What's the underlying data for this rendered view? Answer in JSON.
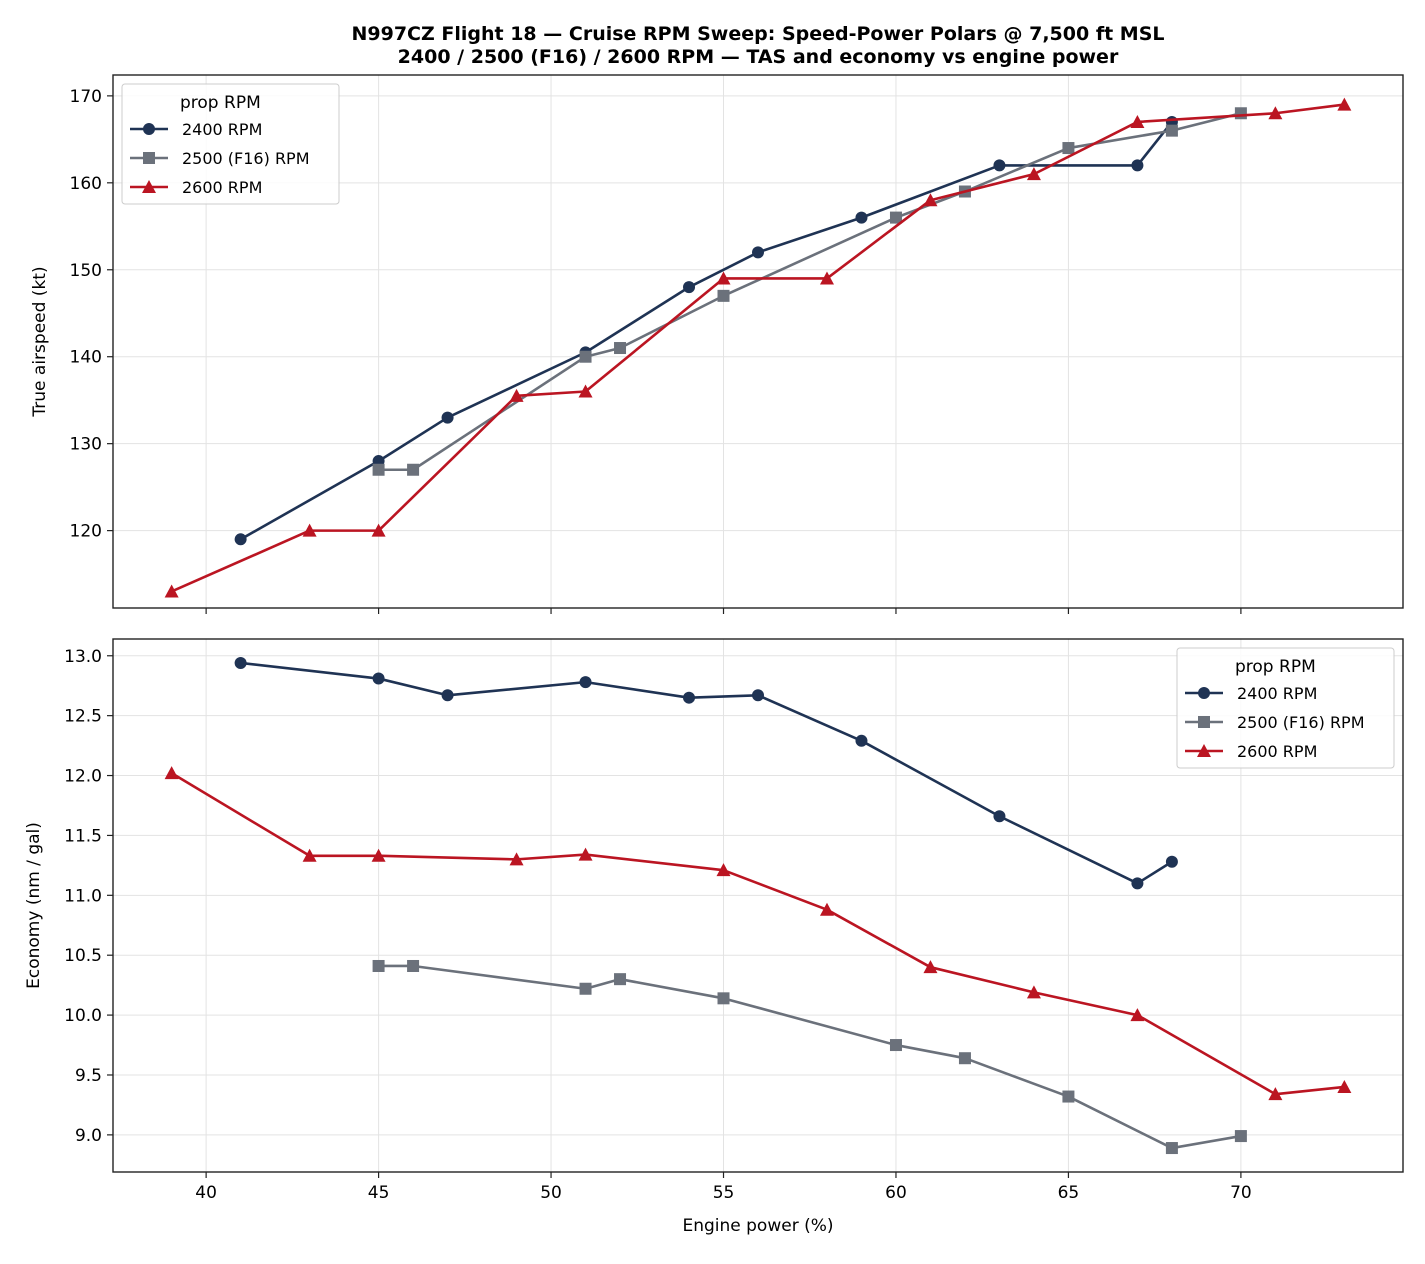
{
  "figure": {
    "title_line1": "N997CZ Flight 18 — Cruise RPM Sweep: Speed-Power Polars @ 7,500 ft MSL",
    "title_line2": "2400 / 2500 (F16) / 2600 RPM — TAS and economy vs engine power"
  },
  "colors": {
    "rpm_2400": "#1f3354",
    "rpm_2500": "#6b717b",
    "rpm_2600": "#bb1522",
    "grid": "#e3e3e3",
    "axes": "#222222"
  },
  "chart_data": [
    {
      "type": "line",
      "title": "",
      "xlabel": "",
      "ylabel": "True airspeed (kt)",
      "xlim": [
        37.3,
        74.7
      ],
      "ylim": [
        111.1,
        172.4
      ],
      "xticks": [
        40,
        45,
        50,
        55,
        60,
        65,
        70
      ],
      "xtick_labels_visible": false,
      "yticks": [
        120,
        130,
        140,
        150,
        160,
        170
      ],
      "ytick_labels": [
        "120",
        "130",
        "140",
        "150",
        "160",
        "170"
      ],
      "grid": true,
      "legend": {
        "title": "prop RPM",
        "placement": "upper-left"
      },
      "series": [
        {
          "name": "2400 RPM",
          "marker": "circle",
          "color": "#1f3354",
          "x": [
            41,
            45,
            47,
            51,
            54,
            56,
            59,
            63,
            67,
            68
          ],
          "y": [
            119,
            128,
            133,
            140.5,
            148,
            152,
            156,
            162,
            162,
            167
          ]
        },
        {
          "name": "2500 (F16) RPM",
          "marker": "square",
          "color": "#6b717b",
          "x": [
            45,
            46,
            51,
            52,
            55,
            60,
            62,
            65,
            68,
            70
          ],
          "y": [
            127,
            127,
            140,
            141,
            147,
            156,
            159,
            164,
            166,
            168
          ]
        },
        {
          "name": "2600 RPM",
          "marker": "triangle",
          "color": "#bb1522",
          "x": [
            39,
            43,
            45,
            49,
            51,
            55,
            58,
            61,
            64,
            67,
            71,
            73
          ],
          "y": [
            113,
            120,
            120,
            135.5,
            136,
            149,
            149,
            158,
            161,
            167,
            168,
            169
          ]
        }
      ]
    },
    {
      "type": "line",
      "title": "",
      "xlabel": "Engine power (%)",
      "ylabel": "Economy (nm / gal)",
      "xlim": [
        37.3,
        74.7
      ],
      "ylim": [
        8.69,
        13.14
      ],
      "xticks": [
        40,
        45,
        50,
        55,
        60,
        65,
        70
      ],
      "xtick_labels": [
        "40",
        "45",
        "50",
        "55",
        "60",
        "65",
        "70"
      ],
      "yticks": [
        9.0,
        9.5,
        10.0,
        10.5,
        11.0,
        11.5,
        12.0,
        12.5,
        13.0
      ],
      "ytick_labels": [
        "9.0",
        "9.5",
        "10.0",
        "10.5",
        "11.0",
        "11.5",
        "12.0",
        "12.5",
        "13.0"
      ],
      "grid": true,
      "legend": {
        "title": "prop RPM",
        "placement": "upper-right"
      },
      "series": [
        {
          "name": "2400 RPM",
          "marker": "circle",
          "color": "#1f3354",
          "x": [
            41,
            45,
            47,
            51,
            54,
            56,
            59,
            63,
            67,
            68
          ],
          "y": [
            12.94,
            12.81,
            12.67,
            12.78,
            12.65,
            12.67,
            12.29,
            11.66,
            11.1,
            11.28
          ]
        },
        {
          "name": "2500 (F16) RPM",
          "marker": "square",
          "color": "#6b717b",
          "x": [
            45,
            46,
            51,
            52,
            55,
            60,
            62,
            65,
            68,
            70
          ],
          "y": [
            10.41,
            10.41,
            10.22,
            10.3,
            10.14,
            9.75,
            9.64,
            9.32,
            8.89,
            8.99
          ]
        },
        {
          "name": "2600 RPM",
          "marker": "triangle",
          "color": "#bb1522",
          "x": [
            39,
            43,
            45,
            49,
            51,
            55,
            58,
            61,
            64,
            67,
            71,
            73
          ],
          "y": [
            12.02,
            11.33,
            11.33,
            11.3,
            11.34,
            11.21,
            10.88,
            10.4,
            10.19,
            10.0,
            9.34,
            9.4
          ]
        }
      ]
    }
  ]
}
